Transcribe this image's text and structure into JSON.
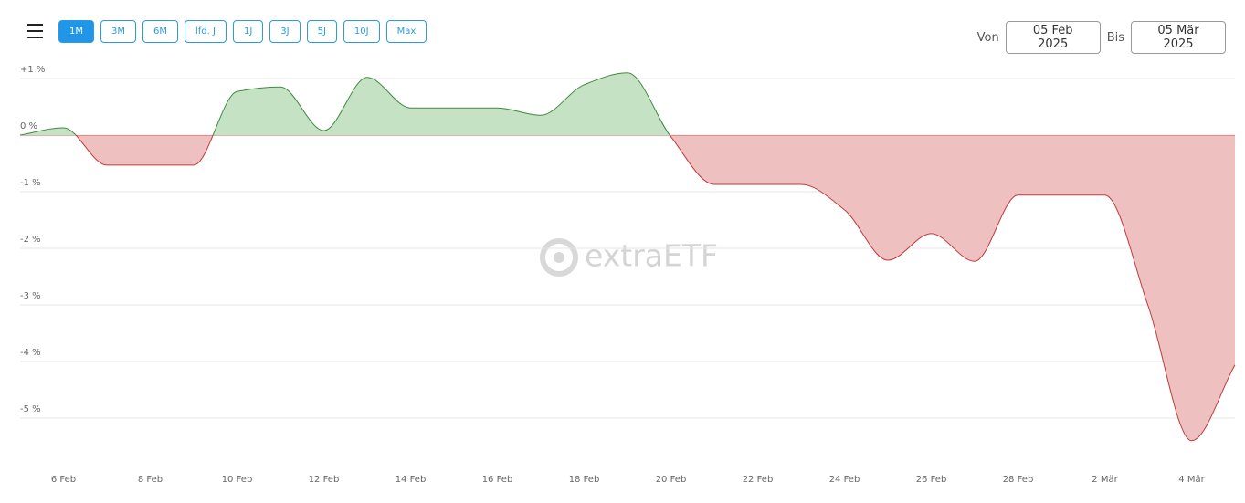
{
  "toolbar": {
    "ranges": [
      "1M",
      "3M",
      "6M",
      "lfd. J",
      "1J",
      "3J",
      "5J",
      "10J",
      "Max"
    ],
    "active": "1M",
    "from_label": "Von",
    "from_date": "05 Feb 2025",
    "to_label": "Bis",
    "to_date": "05 Mär 2025"
  },
  "watermark": "extraETF",
  "chart_data": {
    "type": "area",
    "categories": [
      null,
      "6 Feb",
      null,
      "8 Feb",
      null,
      "10 Feb",
      null,
      "12 Feb",
      null,
      "14 Feb",
      null,
      "16 Feb",
      null,
      "18 Feb",
      null,
      "20 Feb",
      null,
      "22 Feb",
      null,
      "24 Feb",
      null,
      "26 Feb",
      null,
      "28 Feb",
      null,
      "2 Mär",
      null,
      "4 Mär",
      null
    ],
    "values": [
      0,
      0.13,
      -0.53,
      -0.53,
      -0.53,
      0.77,
      0.85,
      0.08,
      1.02,
      0.48,
      0.48,
      0.48,
      0.35,
      0.89,
      1.1,
      -0.03,
      -0.87,
      -0.87,
      -0.87,
      -1.32,
      -2.21,
      -1.74,
      -2.23,
      -1.06,
      -1.06,
      -1.06,
      -3.02,
      -5.4,
      -4.06
    ],
    "ylim": [
      -5.85,
      1.3
    ],
    "yticks": [
      {
        "value": 1,
        "label": "+1 %"
      },
      {
        "value": 0,
        "label": "0 %"
      },
      {
        "value": -1,
        "label": "-1 %"
      },
      {
        "value": -2,
        "label": "-2 %"
      },
      {
        "value": -3,
        "label": "-3 %"
      },
      {
        "value": -4,
        "label": "-4 %"
      },
      {
        "value": -5,
        "label": "-5 %"
      }
    ],
    "grid": true,
    "positive_color": "#3d8b3d",
    "positive_fill": "#c6e2c4",
    "negative_color": "#c0393b",
    "negative_fill": "#efc0c0"
  }
}
